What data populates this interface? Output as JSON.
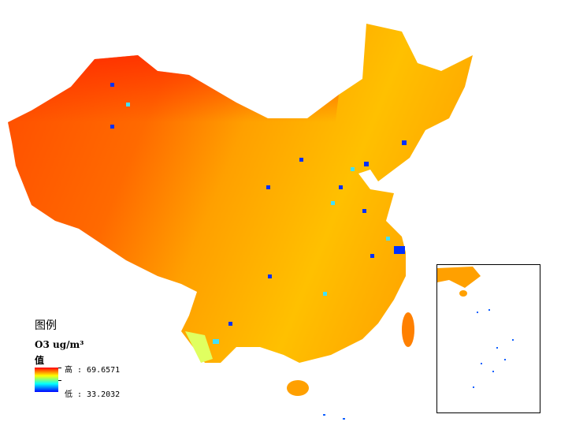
{
  "map": {
    "colors": {
      "high": "#ff0000",
      "mid": "#ffff00",
      "low": "#0000ff"
    }
  },
  "legend": {
    "title": "图例",
    "layer": "O3 ug/m³",
    "field": "值",
    "high_label": "高 : 69.6571",
    "low_label": "低 : 33.2032",
    "high_value": 69.6571,
    "low_value": 33.2032
  }
}
